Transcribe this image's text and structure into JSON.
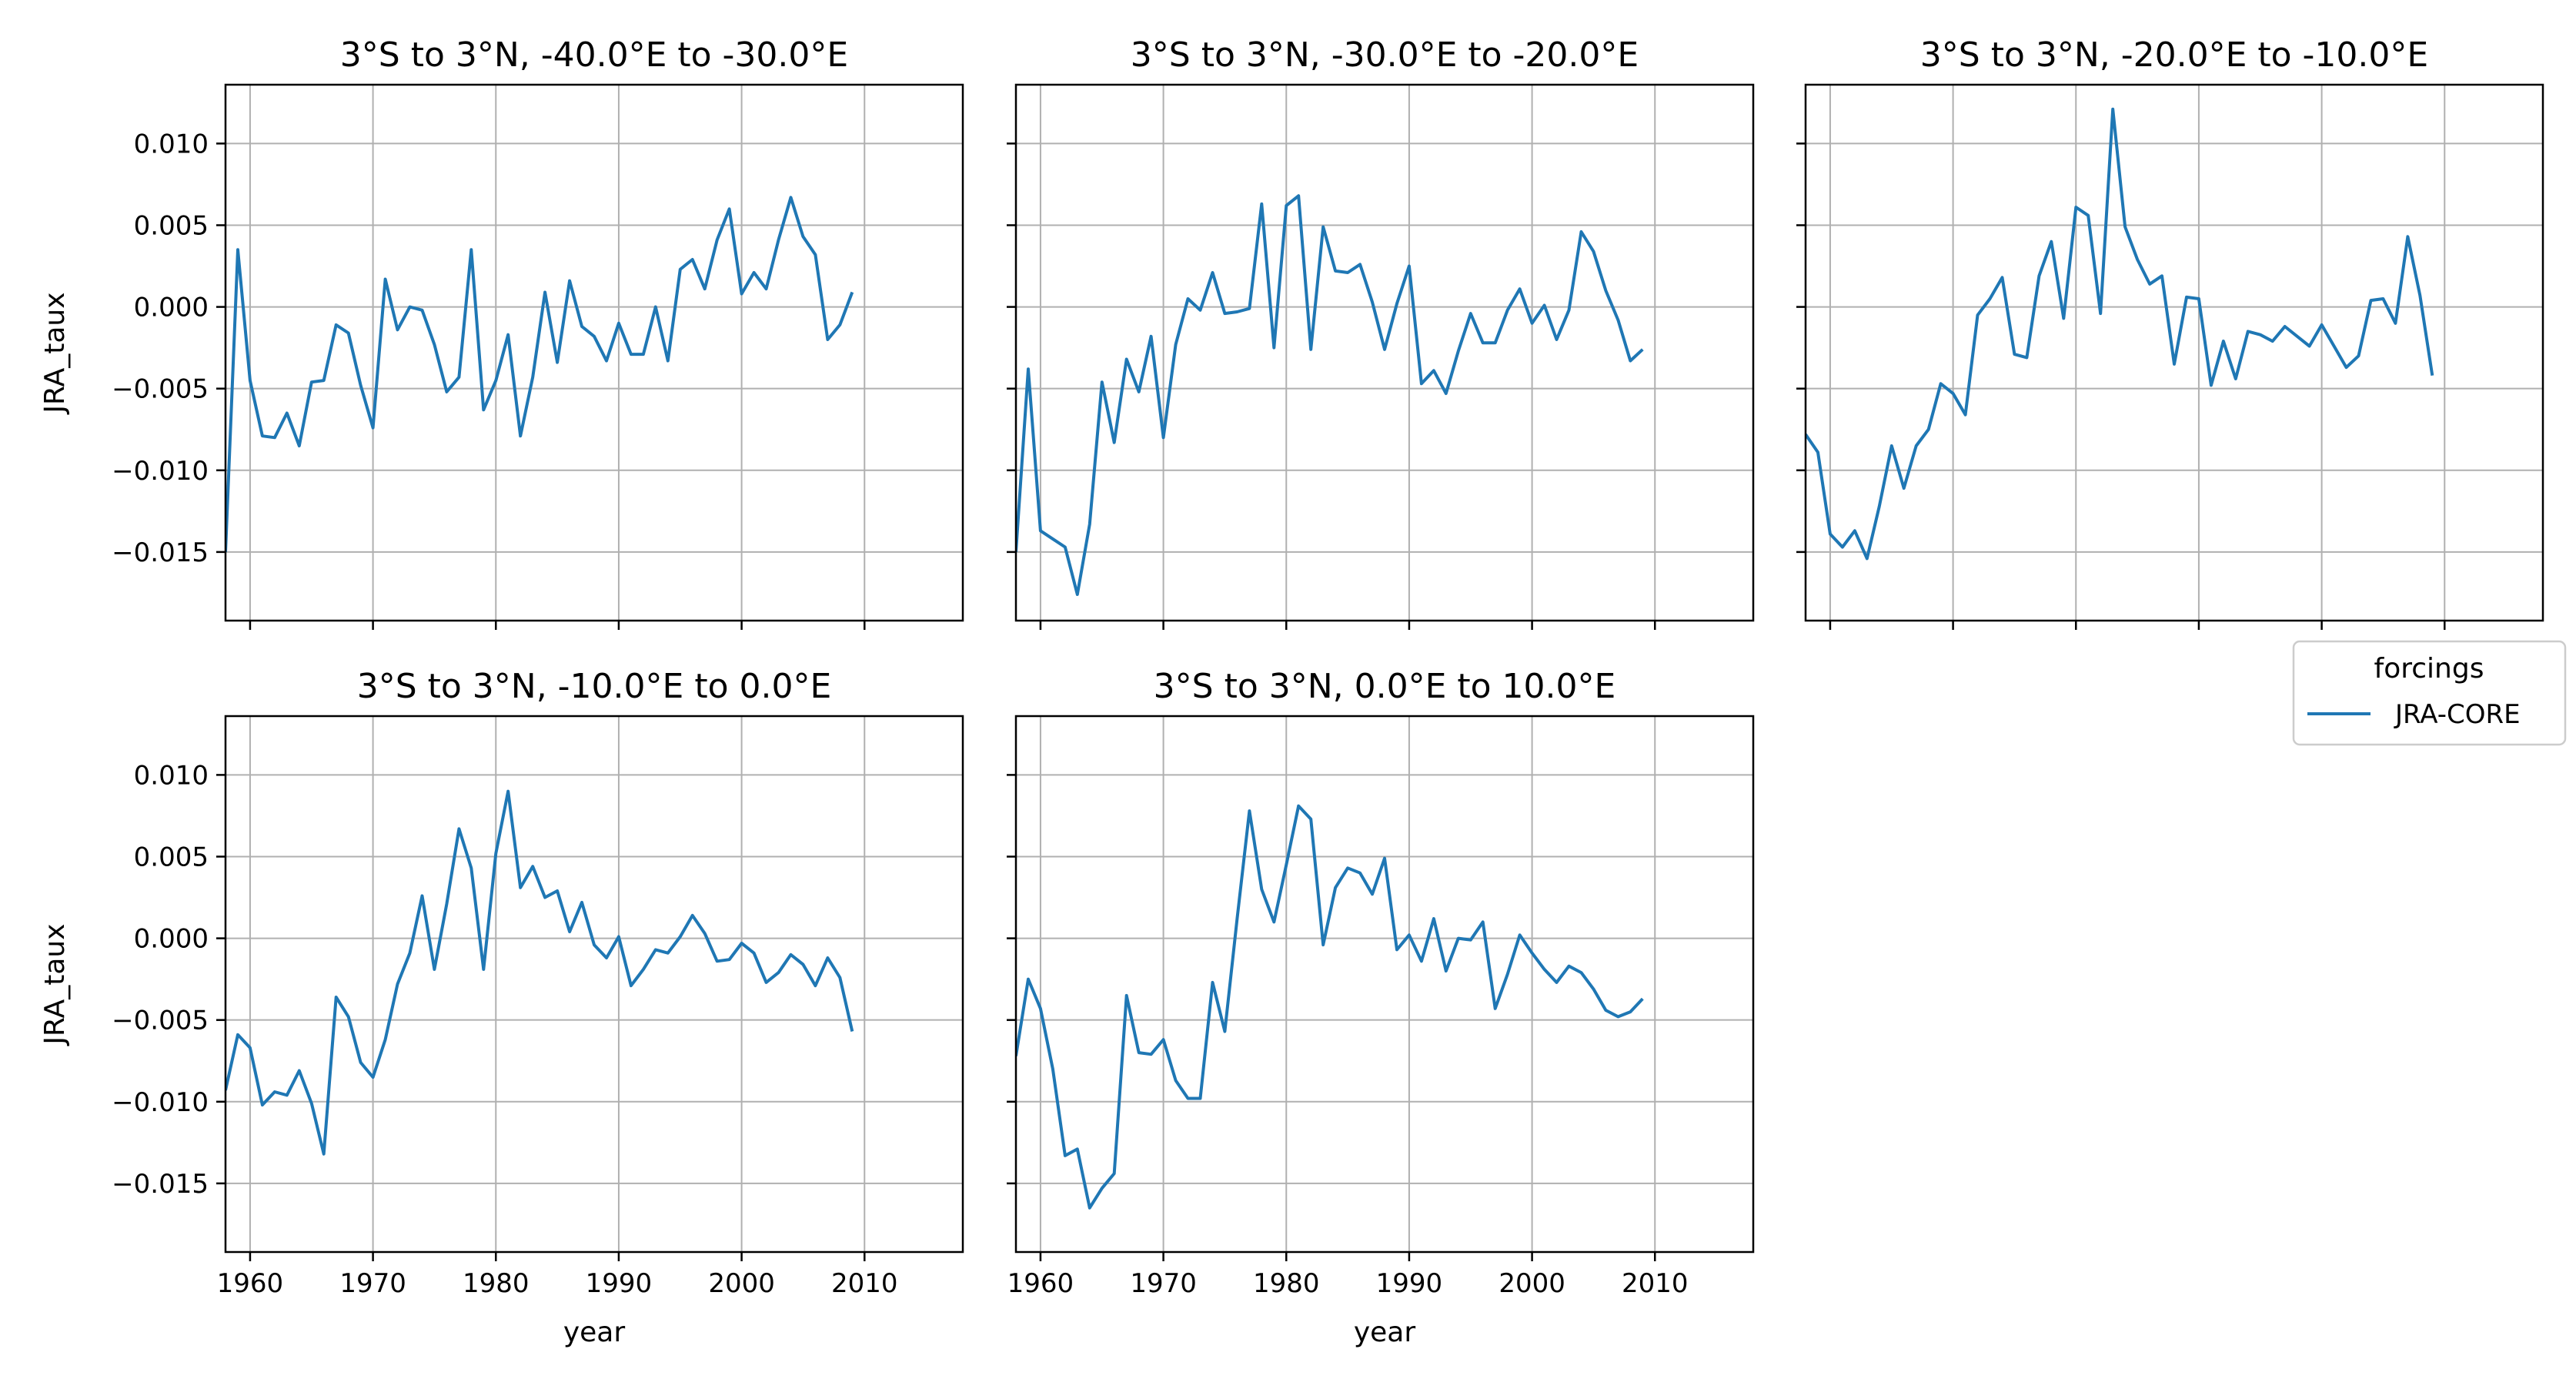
{
  "figure": {
    "legend": {
      "title": "forcings",
      "entries": [
        {
          "label": "JRA-CORE",
          "color": "#1f77b4"
        }
      ]
    },
    "ytick_labels": [
      "−0.015",
      "−0.010",
      "−0.005",
      "0.000",
      "0.005",
      "0.010"
    ],
    "xtick_labels": [
      "1960",
      "1970",
      "1980",
      "1990",
      "2000",
      "2010"
    ]
  },
  "chart_data": [
    {
      "type": "line",
      "title": "3°S to 3°N, -40.0°E to -30.0°E",
      "xlabel": "",
      "ylabel": "JRA_taux",
      "xlim": [
        1958,
        2018
      ],
      "ylim": [
        -0.0192,
        0.0136
      ],
      "yticks": [
        -0.015,
        -0.01,
        -0.005,
        0.0,
        0.005,
        0.01
      ],
      "xticks": [
        1960,
        1970,
        1980,
        1990,
        2000,
        2010
      ],
      "grid": true,
      "series": [
        {
          "name": "JRA-CORE",
          "color": "#1f77b4",
          "x": [
            1958,
            1959,
            1960,
            1961,
            1962,
            1963,
            1964,
            1965,
            1966,
            1967,
            1968,
            1969,
            1970,
            1971,
            1972,
            1973,
            1974,
            1975,
            1976,
            1977,
            1978,
            1979,
            1980,
            1981,
            1982,
            1983,
            1984,
            1985,
            1986,
            1987,
            1988,
            1989,
            1990,
            1991,
            1992,
            1993,
            1994,
            1995,
            1996,
            1997,
            1998,
            1999,
            2000,
            2001,
            2002,
            2003,
            2004,
            2005,
            2006,
            2007,
            2008,
            2009
          ],
          "y": [
            -0.015,
            0.0035,
            -0.0045,
            -0.0079,
            -0.008,
            -0.0065,
            -0.0085,
            -0.0046,
            -0.0045,
            -0.0011,
            -0.0016,
            -0.0048,
            -0.0074,
            0.0017,
            -0.0014,
            0.0,
            -0.0002,
            -0.0023,
            -0.0052,
            -0.0043,
            0.0035,
            -0.0063,
            -0.0045,
            -0.0017,
            -0.0079,
            -0.0043,
            0.0009,
            -0.0034,
            0.0016,
            -0.0012,
            -0.0018,
            -0.0033,
            -0.001,
            -0.0029,
            -0.0029,
            0.0,
            -0.0033,
            0.0023,
            0.0029,
            0.0011,
            0.0041,
            0.006,
            0.0008,
            0.0021,
            0.0011,
            0.0041,
            0.0067,
            0.0043,
            0.0032,
            -0.002,
            -0.0011,
            0.0009
          ]
        }
      ]
    },
    {
      "type": "line",
      "title": "3°S to 3°N, -30.0°E to -20.0°E",
      "xlabel": "",
      "ylabel": "",
      "xlim": [
        1958,
        2018
      ],
      "ylim": [
        -0.0192,
        0.0136
      ],
      "yticks": [
        -0.015,
        -0.01,
        -0.005,
        0.0,
        0.005,
        0.01
      ],
      "xticks": [
        1960,
        1970,
        1980,
        1990,
        2000,
        2010
      ],
      "grid": true,
      "series": [
        {
          "name": "JRA-CORE",
          "color": "#1f77b4",
          "x": [
            1958,
            1959,
            1960,
            1961,
            1962,
            1963,
            1964,
            1965,
            1966,
            1967,
            1968,
            1969,
            1970,
            1971,
            1972,
            1973,
            1974,
            1975,
            1976,
            1977,
            1978,
            1979,
            1980,
            1981,
            1982,
            1983,
            1984,
            1985,
            1986,
            1987,
            1988,
            1989,
            1990,
            1991,
            1992,
            1993,
            1994,
            1995,
            1996,
            1997,
            1998,
            1999,
            2000,
            2001,
            2002,
            2003,
            2004,
            2005,
            2006,
            2007,
            2008,
            2009
          ],
          "y": [
            -0.015,
            -0.0038,
            -0.0137,
            -0.0142,
            -0.0147,
            -0.0176,
            -0.0133,
            -0.0046,
            -0.0083,
            -0.0032,
            -0.0052,
            -0.0018,
            -0.008,
            -0.0023,
            0.0005,
            -0.0002,
            0.0021,
            -0.0004,
            -0.0003,
            -0.0001,
            0.0063,
            -0.0025,
            0.0062,
            0.0068,
            -0.0026,
            0.0049,
            0.0022,
            0.0021,
            0.0026,
            0.0003,
            -0.0026,
            0.0002,
            0.0025,
            -0.0047,
            -0.0039,
            -0.0053,
            -0.0027,
            -0.0004,
            -0.0022,
            -0.0022,
            -0.0002,
            0.0011,
            -0.001,
            0.0001,
            -0.002,
            -0.0002,
            0.0046,
            0.0034,
            0.001,
            -0.0008,
            -0.0033,
            -0.0026
          ]
        }
      ]
    },
    {
      "type": "line",
      "title": "3°S to 3°N, -20.0°E to -10.0°E",
      "xlabel": "",
      "ylabel": "",
      "xlim": [
        1958,
        2018
      ],
      "ylim": [
        -0.0192,
        0.0136
      ],
      "yticks": [
        -0.015,
        -0.01,
        -0.005,
        0.0,
        0.005,
        0.01
      ],
      "xticks": [
        1960,
        1970,
        1980,
        1990,
        2000,
        2010
      ],
      "grid": true,
      "series": [
        {
          "name": "JRA-CORE",
          "color": "#1f77b4",
          "x": [
            1958,
            1959,
            1960,
            1961,
            1962,
            1963,
            1964,
            1965,
            1966,
            1967,
            1968,
            1969,
            1970,
            1971,
            1972,
            1973,
            1974,
            1975,
            1976,
            1977,
            1978,
            1979,
            1980,
            1981,
            1982,
            1983,
            1984,
            1985,
            1986,
            1987,
            1988,
            1989,
            1990,
            1991,
            1992,
            1993,
            1994,
            1995,
            1996,
            1997,
            1998,
            1999,
            2000,
            2001,
            2002,
            2003,
            2004,
            2005,
            2006,
            2007,
            2008,
            2009
          ],
          "y": [
            -0.0078,
            -0.0089,
            -0.0139,
            -0.0147,
            -0.0137,
            -0.0154,
            -0.0122,
            -0.0085,
            -0.0111,
            -0.0085,
            -0.0075,
            -0.0047,
            -0.0053,
            -0.0066,
            -0.0005,
            0.0005,
            0.0018,
            -0.0029,
            -0.0031,
            0.0019,
            0.004,
            -0.0007,
            0.0061,
            0.0056,
            -0.0004,
            0.0121,
            0.0049,
            0.0029,
            0.0014,
            0.0019,
            -0.0035,
            0.0006,
            0.0005,
            -0.0048,
            -0.0021,
            -0.0044,
            -0.0015,
            -0.0017,
            -0.0021,
            -0.0012,
            -0.0018,
            -0.0024,
            -0.0011,
            -0.0024,
            -0.0037,
            -0.003,
            0.0004,
            0.0005,
            -0.001,
            0.0043,
            0.0007,
            -0.0042
          ]
        }
      ]
    },
    {
      "type": "line",
      "title": "3°S to 3°N, -10.0°E to 0.0°E",
      "xlabel": "year",
      "ylabel": "JRA_taux",
      "xlim": [
        1958,
        2018
      ],
      "ylim": [
        -0.0192,
        0.0136
      ],
      "yticks": [
        -0.015,
        -0.01,
        -0.005,
        0.0,
        0.005,
        0.01
      ],
      "xticks": [
        1960,
        1970,
        1980,
        1990,
        2000,
        2010
      ],
      "grid": true,
      "series": [
        {
          "name": "JRA-CORE",
          "color": "#1f77b4",
          "x": [
            1958,
            1959,
            1960,
            1961,
            1962,
            1963,
            1964,
            1965,
            1966,
            1967,
            1968,
            1969,
            1970,
            1971,
            1972,
            1973,
            1974,
            1975,
            1976,
            1977,
            1978,
            1979,
            1980,
            1981,
            1982,
            1983,
            1984,
            1985,
            1986,
            1987,
            1988,
            1989,
            1990,
            1991,
            1992,
            1993,
            1994,
            1995,
            1996,
            1997,
            1998,
            1999,
            2000,
            2001,
            2002,
            2003,
            2004,
            2005,
            2006,
            2007,
            2008,
            2009
          ],
          "y": [
            -0.0093,
            -0.0059,
            -0.0067,
            -0.0102,
            -0.0094,
            -0.0096,
            -0.0081,
            -0.0101,
            -0.0132,
            -0.0036,
            -0.0048,
            -0.0076,
            -0.0085,
            -0.0062,
            -0.0028,
            -0.0009,
            0.0026,
            -0.0019,
            0.0021,
            0.0067,
            0.0043,
            -0.0019,
            0.0052,
            0.009,
            0.0031,
            0.0044,
            0.0025,
            0.0029,
            0.0004,
            0.0022,
            -0.0004,
            -0.0012,
            0.0001,
            -0.0029,
            -0.0019,
            -0.0007,
            -0.0009,
            0.0001,
            0.0014,
            0.0003,
            -0.0014,
            -0.0013,
            -0.0003,
            -0.0009,
            -0.0027,
            -0.0021,
            -0.001,
            -0.0016,
            -0.0029,
            -0.0012,
            -0.0024,
            -0.0057
          ]
        }
      ]
    },
    {
      "type": "line",
      "title": "3°S to 3°N, 0.0°E to 10.0°E",
      "xlabel": "year",
      "ylabel": "",
      "xlim": [
        1958,
        2018
      ],
      "ylim": [
        -0.0192,
        0.0136
      ],
      "yticks": [
        -0.015,
        -0.01,
        -0.005,
        0.0,
        0.005,
        0.01
      ],
      "xticks": [
        1960,
        1970,
        1980,
        1990,
        2000,
        2010
      ],
      "grid": true,
      "series": [
        {
          "name": "JRA-CORE",
          "color": "#1f77b4",
          "x": [
            1958,
            1959,
            1960,
            1961,
            1962,
            1963,
            1964,
            1965,
            1966,
            1967,
            1968,
            1969,
            1970,
            1971,
            1972,
            1973,
            1974,
            1975,
            1976,
            1977,
            1978,
            1979,
            1980,
            1981,
            1982,
            1983,
            1984,
            1985,
            1986,
            1987,
            1988,
            1989,
            1990,
            1991,
            1992,
            1993,
            1994,
            1995,
            1996,
            1997,
            1998,
            1999,
            2000,
            2001,
            2002,
            2003,
            2004,
            2005,
            2006,
            2007,
            2008,
            2009
          ],
          "y": [
            -0.0072,
            -0.0025,
            -0.0043,
            -0.008,
            -0.0133,
            -0.0129,
            -0.0165,
            -0.0153,
            -0.0144,
            -0.0035,
            -0.007,
            -0.0071,
            -0.0062,
            -0.0087,
            -0.0098,
            -0.0098,
            -0.0027,
            -0.0057,
            0.0012,
            0.0078,
            0.003,
            0.001,
            0.0045,
            0.0081,
            0.0073,
            -0.0004,
            0.0031,
            0.0043,
            0.004,
            0.0027,
            0.0049,
            -0.0007,
            0.0002,
            -0.0014,
            0.0012,
            -0.002,
            0.0,
            -0.0001,
            0.001,
            -0.0043,
            -0.0022,
            0.0002,
            -0.0009,
            -0.0019,
            -0.0027,
            -0.0017,
            -0.0021,
            -0.0031,
            -0.0044,
            -0.0048,
            -0.0045,
            -0.0037
          ]
        }
      ]
    }
  ]
}
